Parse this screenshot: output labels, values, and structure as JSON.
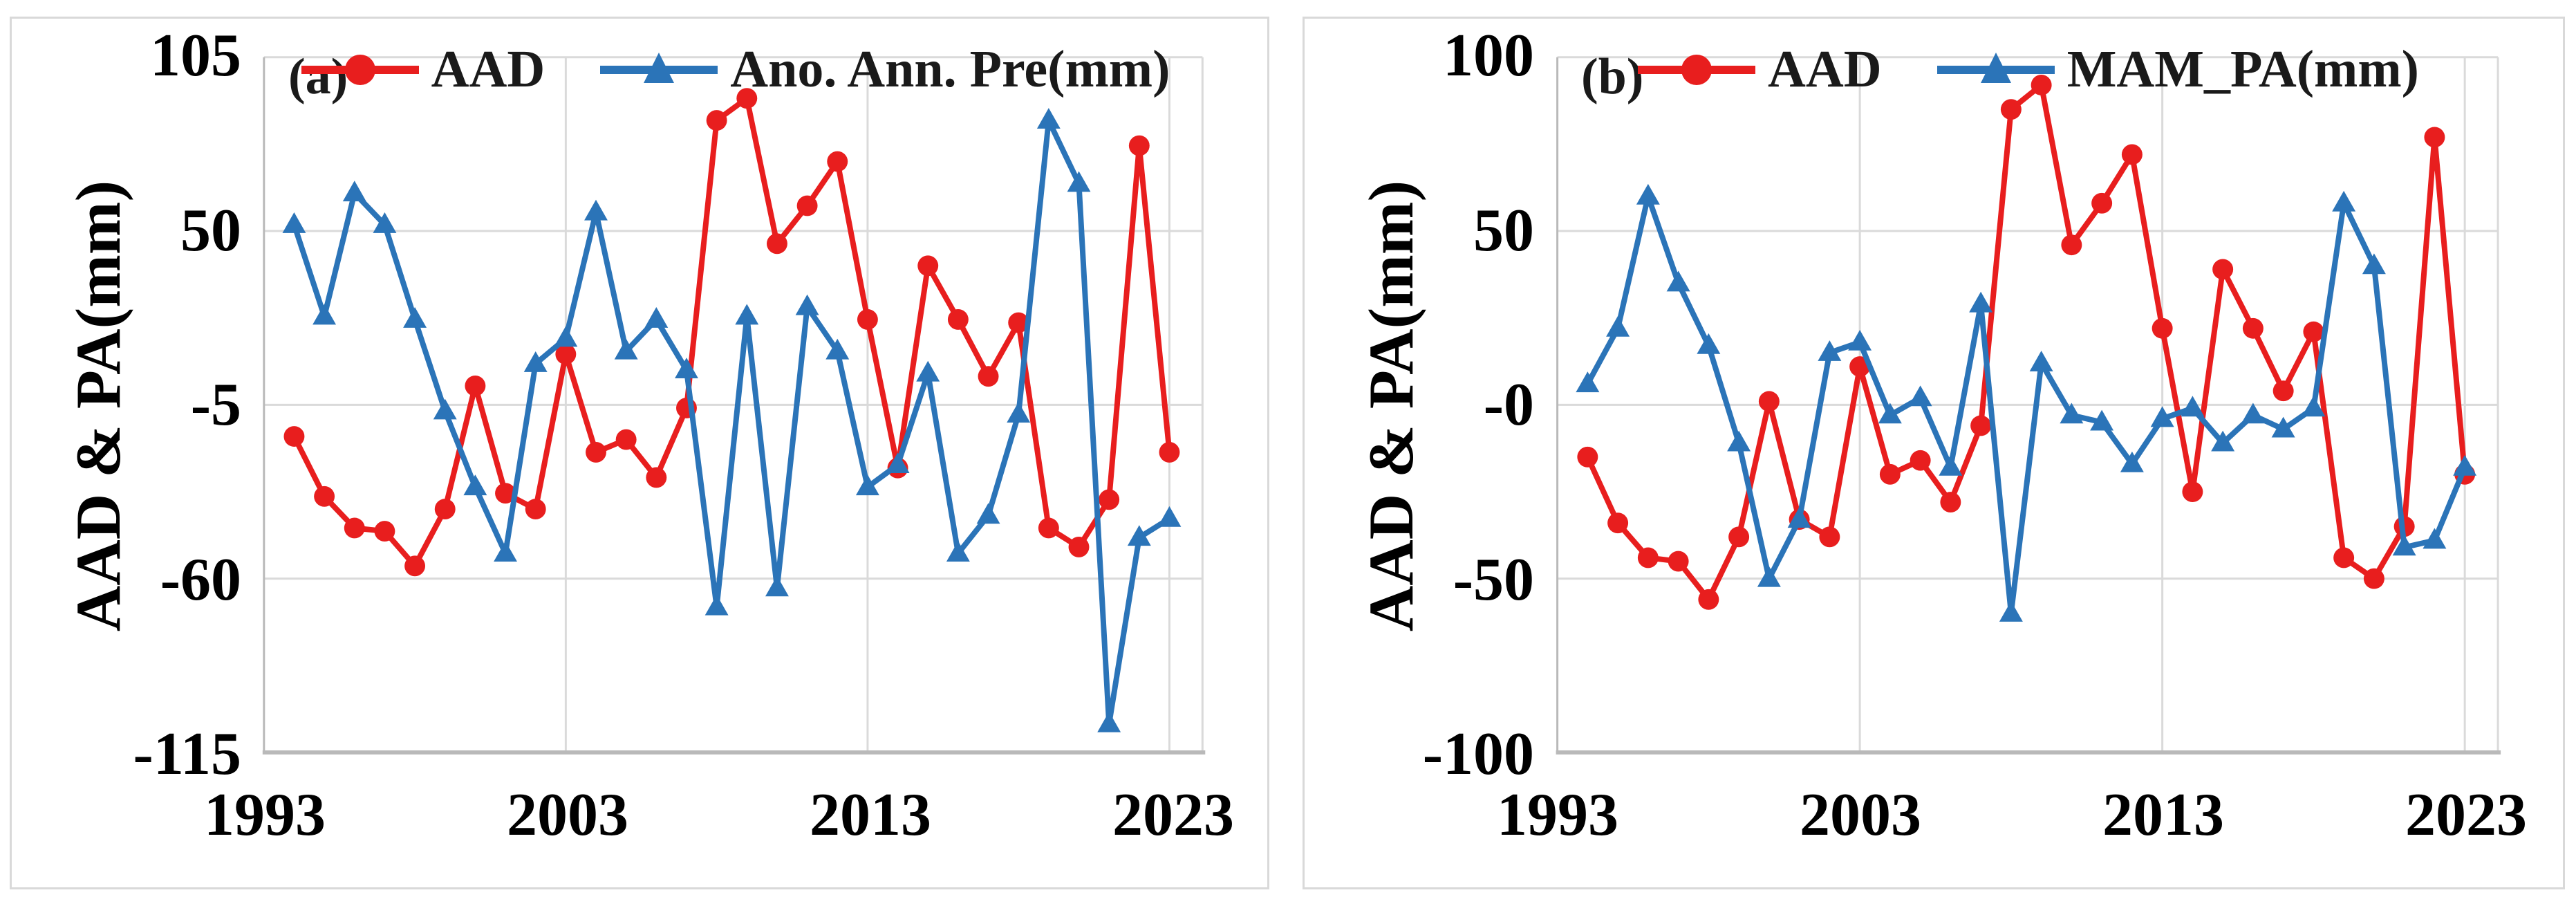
{
  "figure": {
    "background": "#ffffff",
    "panel_border_color": "#d9d9d9",
    "gridline_color": "#dadada",
    "axis_line_color": "#b9b9b9",
    "text_color": "#000000"
  },
  "chart_data": [
    {
      "id": "a",
      "type": "line",
      "panel_label": "(a)",
      "y_axis_title": "AAD & PA(mm)",
      "xlabel": "",
      "ylabel": "AAD & PA(mm)",
      "grid": true,
      "legend_position": "top-center",
      "ylim": [
        -115,
        105
      ],
      "y_ticks": [
        {
          "label": "105",
          "value": 105
        },
        {
          "label": "50",
          "value": 50
        },
        {
          "label": "-5",
          "value": -5
        },
        {
          "label": "-60",
          "value": -60
        },
        {
          "label": "-115",
          "value": -115
        }
      ],
      "x_tick_labels": [
        "1993",
        "2003",
        "2013",
        "2023"
      ],
      "x_tick_years": [
        1993,
        2003,
        2013,
        2023
      ],
      "x": [
        1994,
        1995,
        1996,
        1997,
        1998,
        1999,
        2000,
        2001,
        2002,
        2003,
        2004,
        2005,
        2006,
        2007,
        2008,
        2009,
        2010,
        2011,
        2012,
        2013,
        2014,
        2015,
        2016,
        2017,
        2018,
        2019,
        2020,
        2021,
        2022,
        2023
      ],
      "series": [
        {
          "name": "AAD",
          "color": "#e81e1e",
          "marker": "circle",
          "values": [
            -15,
            -34,
            -44,
            -45,
            -56,
            -38,
            1,
            -33,
            -38,
            11,
            -20,
            -16,
            -28,
            -6,
            85,
            92,
            46,
            58,
            72,
            22,
            -25,
            39,
            22,
            4,
            21,
            -44,
            -50,
            -35,
            77,
            -20
          ]
        },
        {
          "name": "Ano. Ann. Pre(mm)",
          "color": "#2b74b8",
          "marker": "triangle",
          "values": [
            52,
            23,
            62,
            52,
            22,
            -7,
            -31,
            -52,
            8,
            16,
            56,
            12,
            22,
            6,
            -69,
            23,
            -63,
            26,
            12,
            -31,
            -24,
            5,
            -52,
            -40,
            -8,
            85,
            65,
            -106,
            -47,
            -41
          ]
        }
      ]
    },
    {
      "id": "b",
      "type": "line",
      "panel_label": "(b)",
      "y_axis_title": "AAD & PA(mm)",
      "xlabel": "",
      "ylabel": "AAD & PA(mm)",
      "grid": true,
      "legend_position": "top-center",
      "ylim": [
        -100,
        100
      ],
      "y_ticks": [
        {
          "label": "100",
          "value": 100
        },
        {
          "label": "50",
          "value": 50
        },
        {
          "label": "-0",
          "value": 0
        },
        {
          "label": "-50",
          "value": -50
        },
        {
          "label": "-100",
          "value": -100
        }
      ],
      "x_tick_labels": [
        "1993",
        "2003",
        "2013",
        "2023"
      ],
      "x_tick_years": [
        1993,
        2003,
        2013,
        2023
      ],
      "x": [
        1994,
        1995,
        1996,
        1997,
        1998,
        1999,
        2000,
        2001,
        2002,
        2003,
        2004,
        2005,
        2006,
        2007,
        2008,
        2009,
        2010,
        2011,
        2012,
        2013,
        2014,
        2015,
        2016,
        2017,
        2018,
        2019,
        2020,
        2021,
        2022,
        2023
      ],
      "series": [
        {
          "name": "AAD",
          "color": "#e81e1e",
          "marker": "circle",
          "values": [
            -15,
            -34,
            -44,
            -45,
            -56,
            -38,
            1,
            -33,
            -38,
            11,
            -20,
            -16,
            -28,
            -6,
            85,
            92,
            46,
            58,
            72,
            22,
            -25,
            39,
            22,
            4,
            21,
            -44,
            -50,
            -35,
            77,
            -20
          ]
        },
        {
          "name": "MAM_PA(mm)",
          "color": "#2b74b8",
          "marker": "triangle",
          "values": [
            6,
            22,
            60,
            35,
            17,
            -11,
            -50,
            -33,
            15,
            18,
            -3,
            2,
            -18,
            29,
            -60,
            12,
            -3,
            -5,
            -17,
            -4,
            -1,
            -11,
            -3,
            -7,
            -1,
            58,
            40,
            -41,
            -39,
            -18
          ]
        }
      ]
    }
  ]
}
